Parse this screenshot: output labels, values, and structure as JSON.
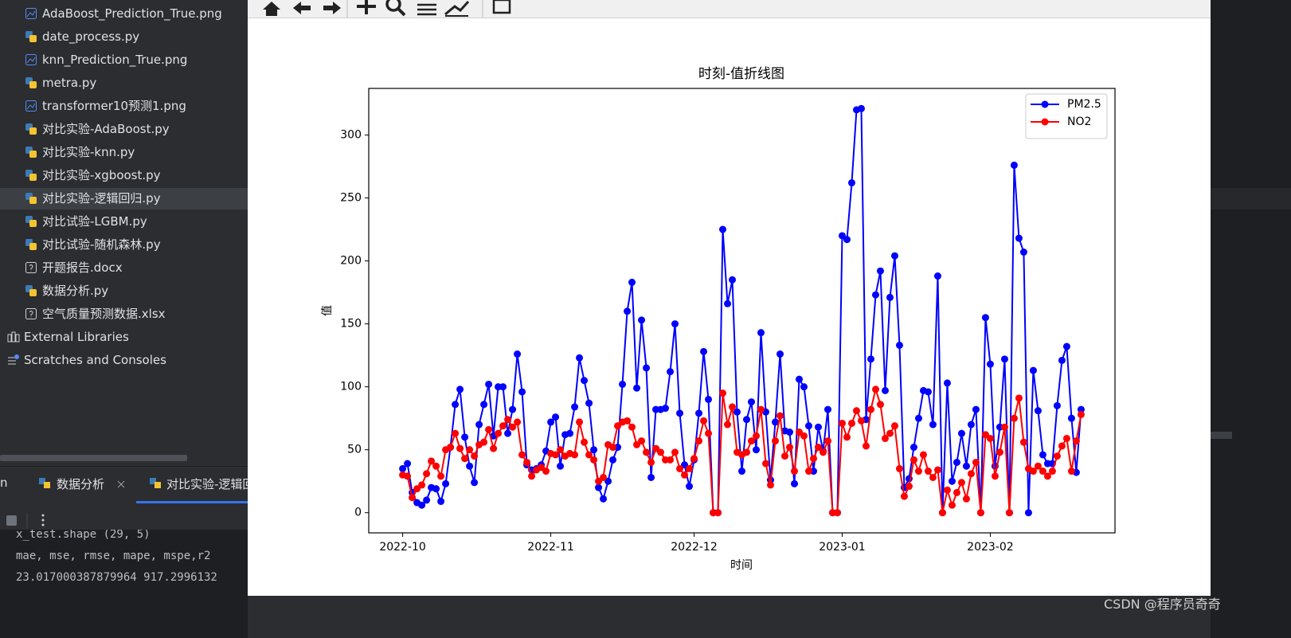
{
  "project_tree": {
    "items": [
      "AdaBoost_Prediction_True.png",
      "date_process.py",
      "knn_Prediction_True.png",
      "metra.py",
      "transformer10预测1.png",
      "对比实验-AdaBoost.py",
      "对比实验-knn.py",
      "对比实验-xgboost.py",
      "对比实验-逻辑回归.py",
      "对比试验-LGBM.py",
      "对比试验-随机森林.py",
      "开题报告.docx",
      "数据分析.py",
      "空气质量预测数据.xlsx"
    ],
    "external_libraries": "External Libraries",
    "scratches": "Scratches and Consoles"
  },
  "run_panel": {
    "tabs": [
      "n",
      "数据分析",
      "对比实验-逻辑回归"
    ],
    "console": [
      "x_test.shape (29, 5)",
      "mae, mse, rmse, mape, mspe,r2",
      "23.017000387879964 917.2996132"
    ]
  },
  "watermark": "CSDN @程序员奇奇",
  "chart_data": {
    "type": "line",
    "title": "时刻-值折线图",
    "x_label": "时间",
    "y_label": "值",
    "x": [
      0,
      1,
      2,
      3,
      4,
      5,
      6,
      7,
      8,
      9,
      10,
      11,
      12,
      13,
      14,
      15,
      16,
      17,
      18,
      19,
      20,
      21,
      22,
      23,
      24,
      25,
      26,
      27,
      28,
      29,
      30,
      31,
      32,
      33,
      34,
      35,
      36,
      37,
      38,
      39,
      40,
      41,
      42,
      43,
      44,
      45,
      46,
      47,
      48,
      49,
      50,
      51,
      52,
      53,
      54,
      55,
      56,
      57,
      58,
      59,
      60,
      61,
      62,
      63,
      64,
      65,
      66,
      67,
      68,
      69,
      70,
      71,
      72,
      73,
      74,
      75,
      76,
      77,
      78,
      79,
      80,
      81,
      82,
      83,
      84,
      85,
      86,
      87,
      88,
      89,
      90,
      91,
      92,
      93,
      94,
      95,
      96,
      97,
      98,
      99,
      100,
      101,
      102,
      103,
      104,
      105,
      106,
      107,
      108,
      109,
      110,
      111,
      112,
      113,
      114,
      115,
      116,
      117,
      118,
      119,
      120,
      121,
      122,
      123,
      124,
      125,
      126,
      127,
      128,
      129,
      130,
      131,
      132,
      133,
      134,
      135,
      136,
      137,
      138,
      139,
      140,
      141,
      142
    ],
    "xlim": [
      -7.1,
      149.1
    ],
    "xticks": [
      {
        "value": 0,
        "label": "2022-10"
      },
      {
        "value": 31,
        "label": "2022-11"
      },
      {
        "value": 61,
        "label": "2022-12"
      },
      {
        "value": 92,
        "label": "2023-01"
      },
      {
        "value": 123,
        "label": "2023-02"
      }
    ],
    "ylim": [
      -16,
      337
    ],
    "yticks": [
      0,
      50,
      100,
      150,
      200,
      250,
      300
    ],
    "grid": false,
    "legend": "upper right",
    "series": [
      {
        "name": "PM2.5",
        "color": "#0000ff",
        "values": [
          35,
          39,
          16,
          8,
          6,
          10,
          20,
          19,
          9,
          23,
          52,
          86,
          98,
          60,
          37,
          24,
          70,
          86,
          102,
          61,
          100,
          100,
          63,
          82,
          126,
          96,
          38,
          34,
          35,
          38,
          49,
          72,
          76,
          37,
          62,
          63,
          84,
          123,
          105,
          87,
          50,
          20,
          11,
          25,
          42,
          52,
          102,
          160,
          183,
          99,
          153,
          115,
          28,
          82,
          82,
          83,
          112,
          150,
          79,
          38,
          21,
          42,
          79,
          128,
          90,
          0,
          0,
          225,
          166,
          185,
          80,
          33,
          74,
          88,
          50,
          143,
          80,
          26,
          72,
          126,
          65,
          64,
          23,
          106,
          100,
          69,
          33,
          68,
          49,
          82,
          0,
          0,
          220,
          217,
          262,
          320,
          321,
          74,
          122,
          173,
          192,
          97,
          171,
          204,
          133,
          20,
          27,
          52,
          75,
          97,
          96,
          70,
          188,
          0,
          103,
          25,
          40,
          63,
          37,
          70,
          82,
          0,
          155,
          118,
          37,
          68,
          122,
          0,
          276,
          218,
          207,
          0,
          113,
          81,
          46,
          39,
          39,
          85,
          121,
          132,
          75,
          32,
          82
        ]
      },
      {
        "name": "NO2",
        "color": "#ff0000",
        "values": [
          30,
          29,
          12,
          19,
          22,
          31,
          41,
          37,
          29,
          50,
          52,
          63,
          51,
          43,
          50,
          45,
          54,
          56,
          66,
          51,
          63,
          69,
          74,
          68,
          72,
          46,
          40,
          29,
          34,
          36,
          33,
          47,
          46,
          50,
          45,
          47,
          46,
          72,
          56,
          46,
          42,
          25,
          28,
          54,
          52,
          69,
          72,
          73,
          68,
          54,
          57,
          48,
          40,
          51,
          48,
          42,
          42,
          48,
          35,
          30,
          35,
          43,
          57,
          73,
          63,
          0,
          0,
          95,
          70,
          84,
          48,
          46,
          48,
          57,
          61,
          82,
          39,
          22,
          57,
          77,
          45,
          52,
          33,
          64,
          61,
          33,
          43,
          52,
          48,
          57,
          0,
          0,
          71,
          60,
          71,
          81,
          73,
          53,
          82,
          98,
          86,
          59,
          63,
          69,
          35,
          13,
          21,
          42,
          33,
          46,
          33,
          28,
          34,
          0,
          18,
          6,
          16,
          24,
          11,
          31,
          40,
          0,
          62,
          59,
          29,
          48,
          68,
          0,
          75,
          91,
          56,
          35,
          33,
          37,
          33,
          29,
          33,
          45,
          53,
          59,
          33,
          57,
          78
        ]
      }
    ]
  }
}
